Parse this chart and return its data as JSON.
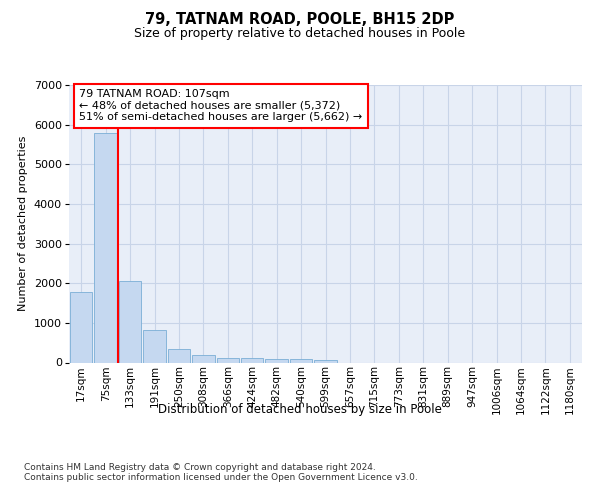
{
  "title": "79, TATNAM ROAD, POOLE, BH15 2DP",
  "subtitle": "Size of property relative to detached houses in Poole",
  "xlabel": "Distribution of detached houses by size in Poole",
  "ylabel": "Number of detached properties",
  "bar_color": "#c5d8f0",
  "bar_edge_color": "#7aaed6",
  "grid_color": "#c8d4e8",
  "background_color": "#e8eef8",
  "vline_color": "red",
  "annotation_text": "79 TATNAM ROAD: 107sqm\n← 48% of detached houses are smaller (5,372)\n51% of semi-detached houses are larger (5,662) →",
  "annotation_box_color": "white",
  "annotation_box_edge": "red",
  "footnote": "Contains HM Land Registry data © Crown copyright and database right 2024.\nContains public sector information licensed under the Open Government Licence v3.0.",
  "categories": [
    "17sqm",
    "75sqm",
    "133sqm",
    "191sqm",
    "250sqm",
    "308sqm",
    "366sqm",
    "424sqm",
    "482sqm",
    "540sqm",
    "599sqm",
    "657sqm",
    "715sqm",
    "773sqm",
    "831sqm",
    "889sqm",
    "947sqm",
    "1006sqm",
    "1064sqm",
    "1122sqm",
    "1180sqm"
  ],
  "values": [
    1780,
    5780,
    2055,
    820,
    340,
    200,
    125,
    110,
    100,
    100,
    70,
    0,
    0,
    0,
    0,
    0,
    0,
    0,
    0,
    0,
    0
  ],
  "ylim": [
    0,
    7000
  ],
  "yticks": [
    0,
    1000,
    2000,
    3000,
    4000,
    5000,
    6000,
    7000
  ],
  "vline_pos": 1.5
}
